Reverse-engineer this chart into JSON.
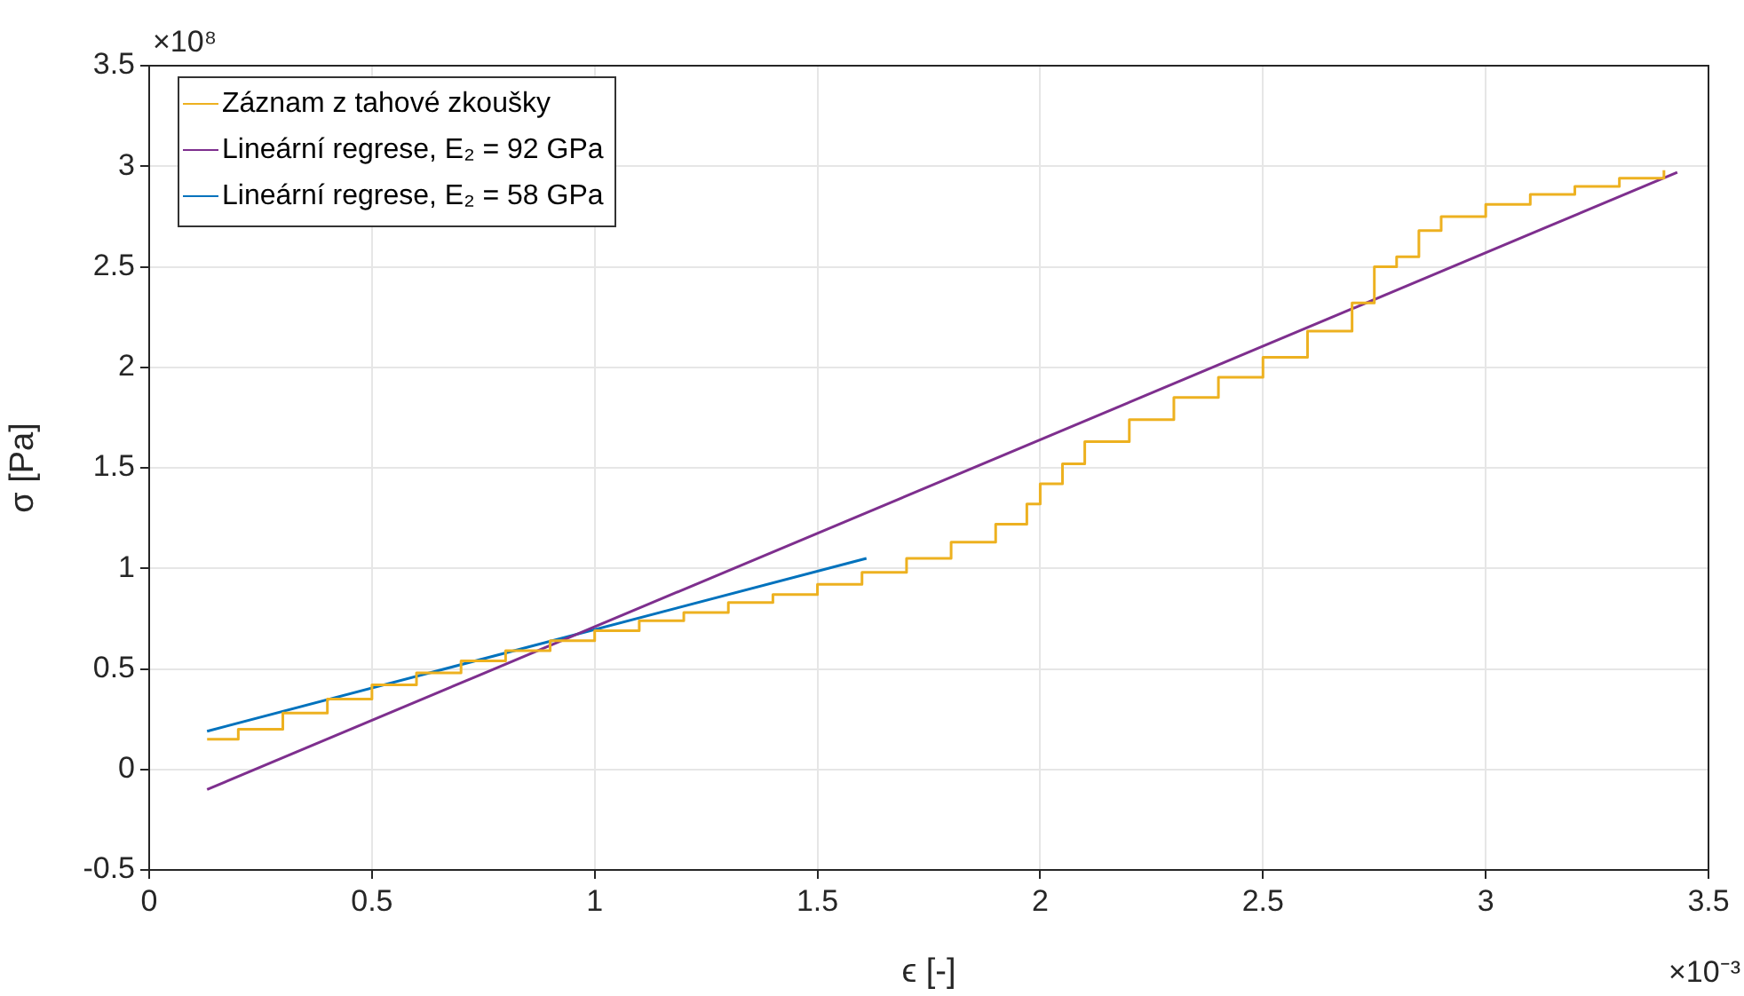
{
  "chart_data": {
    "type": "line",
    "xlabel": "ϵ [-]",
    "ylabel": "σ [Pa]",
    "xlim": [
      0,
      3.5
    ],
    "ylim": [
      -0.5,
      3.5
    ],
    "xticks": [
      0,
      0.5,
      1,
      1.5,
      2,
      2.5,
      3,
      3.5
    ],
    "yticks": [
      -0.5,
      0,
      0.5,
      1,
      1.5,
      2,
      2.5,
      3,
      3.5
    ],
    "annotations": [
      "×10⁸",
      "×10⁻³"
    ],
    "grid": true,
    "legend": "top left",
    "marker": "none",
    "series": [
      {
        "name": "Záznam z tahové zkoušky",
        "type": "step",
        "color": "#edb120",
        "x": [
          0.13,
          0.2,
          0.3,
          0.4,
          0.5,
          0.6,
          0.7,
          0.8,
          0.9,
          1.0,
          1.1,
          1.2,
          1.3,
          1.4,
          1.5,
          1.6,
          1.7,
          1.8,
          1.9,
          1.97,
          2.0,
          2.05,
          2.1,
          2.2,
          2.3,
          2.4,
          2.5,
          2.6,
          2.7,
          2.75,
          2.8,
          2.85,
          2.9,
          3.0,
          3.1,
          3.2,
          3.3,
          3.4
        ],
        "values": [
          0.15,
          0.2,
          0.28,
          0.35,
          0.42,
          0.48,
          0.54,
          0.59,
          0.64,
          0.69,
          0.74,
          0.78,
          0.83,
          0.87,
          0.92,
          0.98,
          1.05,
          1.13,
          1.22,
          1.32,
          1.42,
          1.52,
          1.63,
          1.74,
          1.85,
          1.95,
          2.05,
          2.18,
          2.32,
          2.5,
          2.55,
          2.68,
          2.75,
          2.81,
          2.86,
          2.9,
          2.94,
          2.98
        ]
      },
      {
        "name": "Lineární regrese, E₂ = 92 GPa",
        "type": "line",
        "color": "#7e2f8e",
        "x": [
          0.13,
          3.43
        ],
        "values": [
          -0.1,
          2.97
        ]
      },
      {
        "name": "Lineární regrese, E₂ = 58 GPa",
        "type": "line",
        "color": "#0072bd",
        "x": [
          0.13,
          1.61
        ],
        "values": [
          0.19,
          1.05
        ]
      }
    ]
  }
}
